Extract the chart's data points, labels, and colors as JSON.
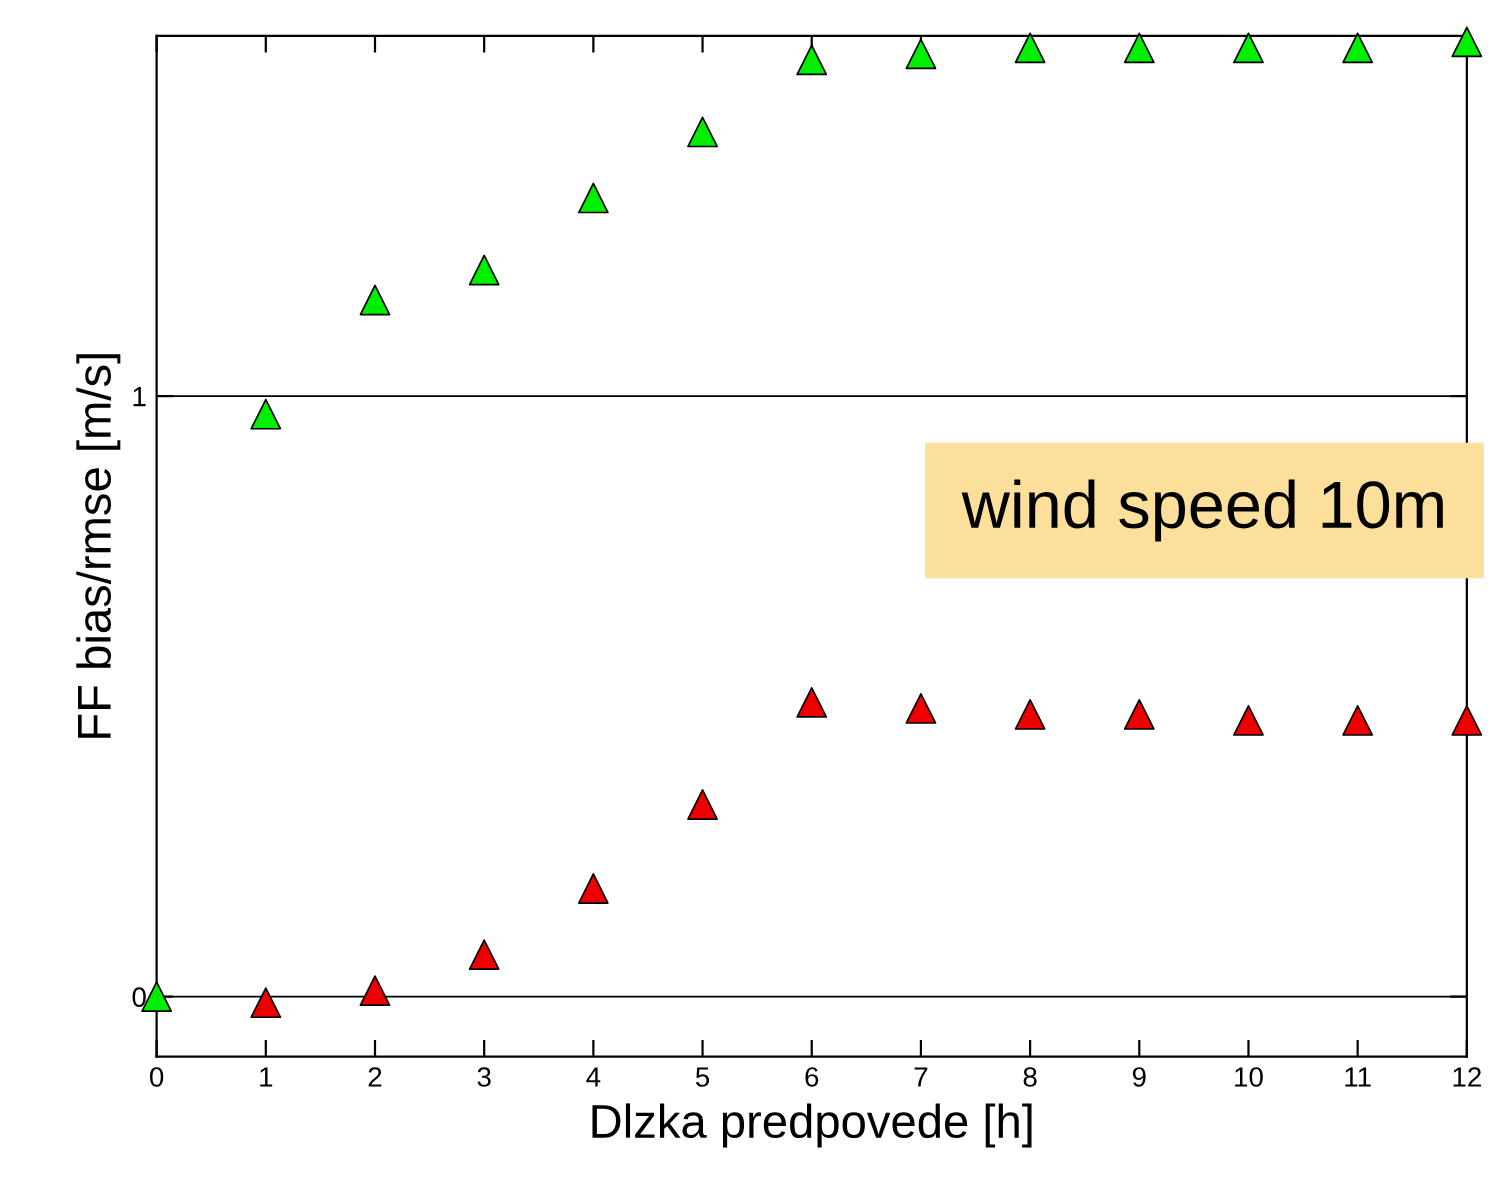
{
  "chart_data": {
    "type": "scatter",
    "xlabel": "Dlzka predpovede [h]",
    "ylabel": "FF bias/rmse [m/s]",
    "x": [
      0,
      1,
      2,
      3,
      4,
      5,
      6,
      7,
      8,
      9,
      10,
      11,
      12
    ],
    "series": [
      {
        "color": "#00ee00",
        "values": [
          0.0,
          0.97,
          1.16,
          1.21,
          1.33,
          1.44,
          1.56,
          1.57,
          1.58,
          1.58,
          1.58,
          1.58,
          1.59
        ]
      },
      {
        "color": "#ee0000",
        "values": [
          null,
          -0.01,
          0.01,
          0.07,
          0.18,
          0.32,
          0.49,
          0.48,
          0.47,
          0.47,
          0.46,
          0.46,
          0.46
        ]
      }
    ],
    "xlim": [
      0,
      12
    ],
    "xticks": [
      0,
      1,
      2,
      3,
      4,
      5,
      6,
      7,
      8,
      9,
      10,
      11,
      12
    ],
    "ylim": [
      -0.1,
      1.6
    ],
    "yticks": [
      0,
      1
    ],
    "grid": "y",
    "marker": "triangle",
    "annotations": [
      "wind speed 10m"
    ]
  }
}
